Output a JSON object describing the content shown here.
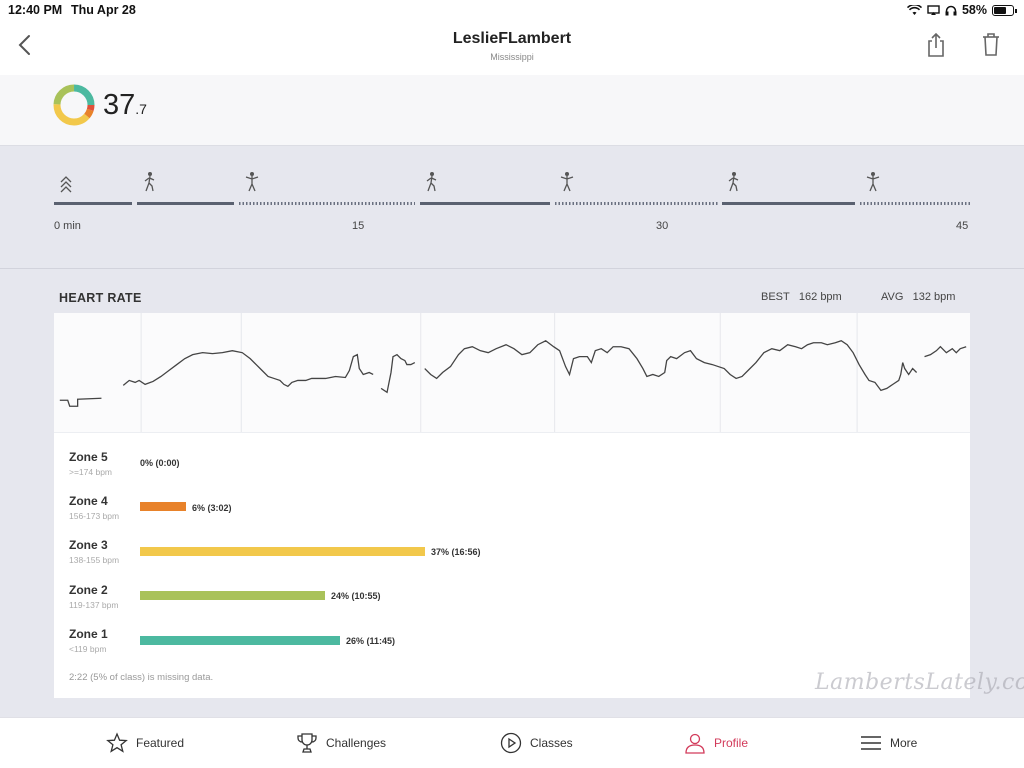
{
  "status": {
    "time": "12:40 PM",
    "date": "Thu Apr 28",
    "battery": "58%"
  },
  "header": {
    "title": "LeslieFLambert",
    "subtitle": "Mississippi",
    "icons": [
      "back-icon",
      "share-icon",
      "trash-icon"
    ]
  },
  "score": {
    "value_int": "37",
    "value_dec": ".7"
  },
  "timeline": {
    "ticks": [
      "0 min",
      "15",
      "30",
      "45"
    ],
    "icons": [
      "chevrons-up-icon",
      "walking-icon",
      "standing-icon",
      "walking-icon",
      "standing-icon",
      "walking-icon",
      "standing-icon"
    ]
  },
  "heart_rate": {
    "title": "HEART RATE",
    "best_label": "BEST",
    "best_value": "162 bpm",
    "avg_label": "AVG",
    "avg_value": "132 bpm",
    "zones": [
      {
        "name": "Zone 5",
        "range": ">=174 bpm",
        "label": "0% (0:00)",
        "percent": 0,
        "color": "#e07a2a"
      },
      {
        "name": "Zone 4",
        "range": "156-173 bpm",
        "label": "6% (3:02)",
        "percent": 6,
        "color": "#e8822a"
      },
      {
        "name": "Zone 3",
        "range": "138-155 bpm",
        "label": "37% (16:56)",
        "percent": 37,
        "color": "#f2c84b"
      },
      {
        "name": "Zone 2",
        "range": "119-137 bpm",
        "label": "24% (10:55)",
        "percent": 24,
        "color": "#a9c25a"
      },
      {
        "name": "Zone 1",
        "range": "<119 bpm",
        "label": "26% (11:45)",
        "percent": 26,
        "color": "#4cb9a0"
      }
    ],
    "missing_note": "2:22 (5% of class) is missing data."
  },
  "watermark": "LambertsLately.com",
  "tabs": [
    {
      "label": "Featured",
      "icon": "star-icon"
    },
    {
      "label": "Challenges",
      "icon": "trophy-icon"
    },
    {
      "label": "Classes",
      "icon": "play-circle-icon"
    },
    {
      "label": "Profile",
      "icon": "person-icon",
      "active": true
    },
    {
      "label": "More",
      "icon": "menu-icon"
    }
  ]
}
